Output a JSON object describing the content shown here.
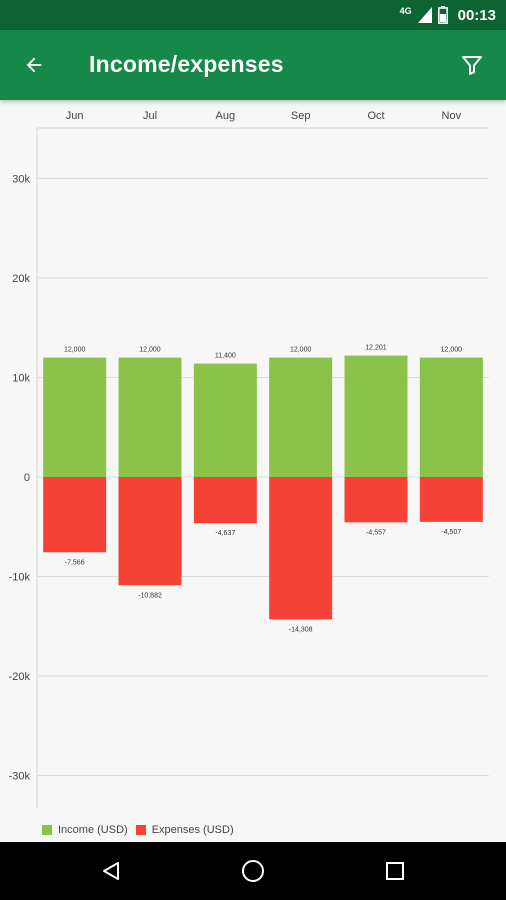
{
  "status_bar": {
    "network": "4G",
    "time": "00:13"
  },
  "app_bar": {
    "title": "Income/expenses",
    "back_icon": "arrow-back-icon",
    "filter_icon": "filter-icon"
  },
  "colors": {
    "income": "#8bc34a",
    "expenses": "#f44336",
    "header": "#15884a",
    "status": "#0e6332"
  },
  "chart_data": {
    "type": "bar",
    "categories": [
      "Jun",
      "Jul",
      "Aug",
      "Sep",
      "Oct",
      "Nov"
    ],
    "series": [
      {
        "name": "Income (USD)",
        "values": [
          12000,
          12000,
          11400,
          12000,
          12201,
          12000
        ],
        "labels": [
          "12,000",
          "12,000",
          "11,400",
          "12,000",
          "12,201",
          "12,000"
        ]
      },
      {
        "name": "Expenses (USD)",
        "values": [
          -7566,
          -10882,
          -4637,
          -14308,
          -4557,
          -4507
        ],
        "labels": [
          "-7,566",
          "-10,882",
          "-4,637",
          "-14,308",
          "-4,557",
          "-4,507"
        ]
      }
    ],
    "yticks": [
      30000,
      20000,
      10000,
      0,
      -10000,
      -20000,
      -30000
    ],
    "ytick_labels": [
      "30k",
      "20k",
      "10k",
      "0",
      "-10k",
      "-20k",
      "-30k"
    ],
    "ylim": [
      -33000,
      35000
    ],
    "grid": true,
    "legend": "bottom-left",
    "xaxis_position": "top"
  },
  "nav_bar": {
    "back_icon": "nav-back-icon",
    "home_icon": "nav-home-icon",
    "recents_icon": "nav-recents-icon"
  }
}
